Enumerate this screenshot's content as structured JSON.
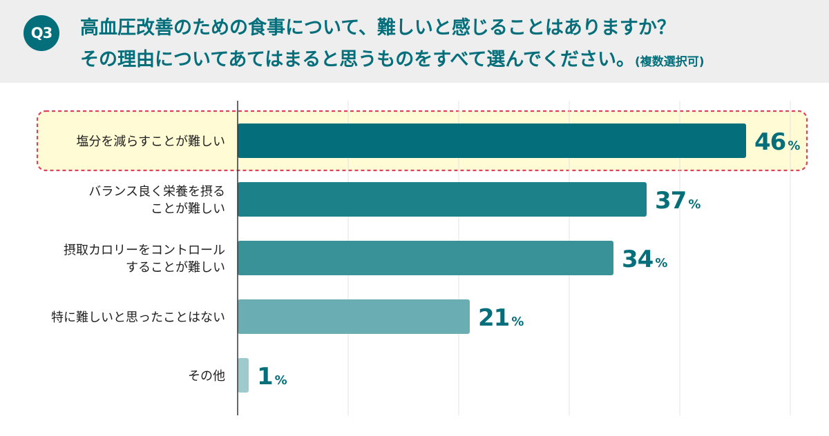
{
  "header": {
    "badge": "Q3",
    "question_line1": "高血圧改善のための食事について、難しいと感じることはありますか？",
    "question_line2": "その理由についてあてはまると思うものをすべて選んでください。",
    "question_note": "(複数選択可)"
  },
  "chart_data": {
    "type": "bar",
    "orientation": "horizontal",
    "categories": [
      [
        "塩分を減らすことが難しい"
      ],
      [
        "バランス良く栄養を摂る",
        "ことが難しい"
      ],
      [
        "摂取カロリーをコントロール",
        "することが難しい"
      ],
      [
        "特に難しいと思ったことはない"
      ],
      [
        "その他"
      ]
    ],
    "values": [
      46,
      37,
      34,
      21,
      1
    ],
    "unit": "%",
    "xlim": [
      0,
      50
    ],
    "grid": true,
    "highlight_index": 0,
    "colors": {
      "bars": [
        "#046f7b",
        "#1d8189",
        "#3a9299",
        "#6aadb3",
        "#9dcacd"
      ],
      "value_text": "#046f7b",
      "highlight_fill": "#fffbd4",
      "highlight_border": "#e0405a",
      "grid": "#e3e3e3",
      "axis": "#333333"
    }
  }
}
